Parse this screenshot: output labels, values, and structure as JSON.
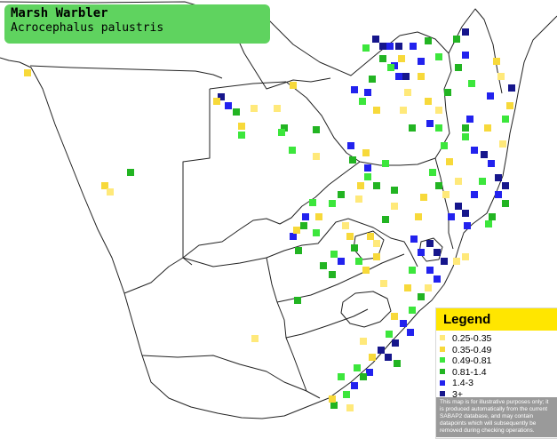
{
  "title": {
    "common_name": "Marsh Warbler",
    "scientific_name": "Acrocephalus palustris"
  },
  "legend": {
    "heading": "Legend",
    "items": [
      {
        "label": "0.25-0.35",
        "color": "#ffe97a"
      },
      {
        "label": "0.35-0.49",
        "color": "#f7d93a"
      },
      {
        "label": "0.49-0.81",
        "color": "#3ce63c"
      },
      {
        "label": "0.81-1.4",
        "color": "#22b422"
      },
      {
        "label": "1.4-3",
        "color": "#2222ee"
      },
      {
        "label": "3+",
        "color": "#16168c"
      }
    ],
    "note": "This map is for illustrative purposes only; it is produced automatically from the current SABAP2 database, and may contain datapoints which will subsequently be removed during checking operations."
  }
}
